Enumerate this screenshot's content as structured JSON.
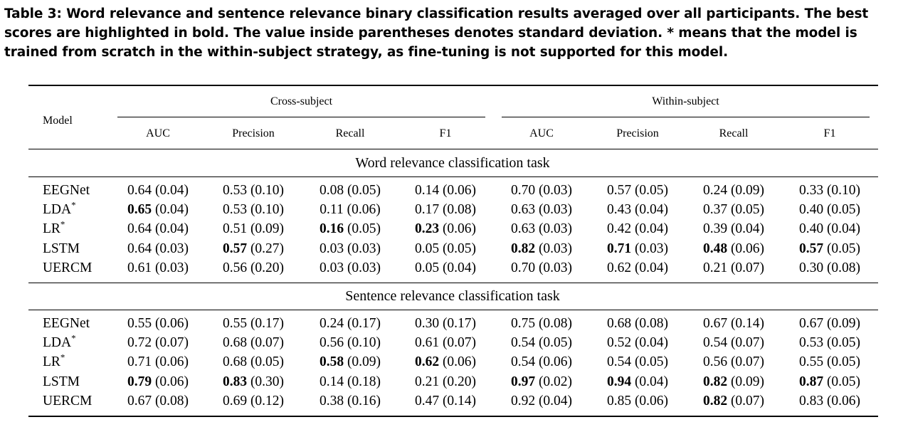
{
  "caption": "Table 3: Word relevance and sentence relevance binary classification results averaged over all participants. The best scores are highlighted in bold. The value inside parentheses denotes standard deviation. * means that the model is trained from scratch in the within-subject strategy, as fine-tuning is not supported for this model.",
  "header": {
    "model": "Model",
    "groups": [
      "Cross-subject",
      "Within-subject"
    ],
    "metrics": [
      "AUC",
      "Precision",
      "Recall",
      "F1",
      "AUC",
      "Precision",
      "Recall",
      "F1"
    ]
  },
  "sections": [
    {
      "title": "Word relevance classification task",
      "rows": [
        {
          "model": "EEGNet",
          "star": false,
          "cells": [
            {
              "v": "0.64",
              "sd": "(0.04)",
              "bold": false
            },
            {
              "v": "0.53",
              "sd": "(0.10)",
              "bold": false
            },
            {
              "v": "0.08",
              "sd": "(0.05)",
              "bold": false
            },
            {
              "v": "0.14",
              "sd": "(0.06)",
              "bold": false
            },
            {
              "v": "0.70",
              "sd": "(0.03)",
              "bold": false
            },
            {
              "v": "0.57",
              "sd": "(0.05)",
              "bold": false
            },
            {
              "v": "0.24",
              "sd": "(0.09)",
              "bold": false
            },
            {
              "v": "0.33",
              "sd": "(0.10)",
              "bold": false
            }
          ]
        },
        {
          "model": "LDA",
          "star": true,
          "cells": [
            {
              "v": "0.65",
              "sd": "(0.04)",
              "bold": true
            },
            {
              "v": "0.53",
              "sd": "(0.10)",
              "bold": false
            },
            {
              "v": "0.11",
              "sd": "(0.06)",
              "bold": false
            },
            {
              "v": "0.17",
              "sd": "(0.08)",
              "bold": false
            },
            {
              "v": "0.63",
              "sd": "(0.03)",
              "bold": false
            },
            {
              "v": "0.43",
              "sd": "(0.04)",
              "bold": false
            },
            {
              "v": "0.37",
              "sd": "(0.05)",
              "bold": false
            },
            {
              "v": "0.40",
              "sd": "(0.05)",
              "bold": false
            }
          ]
        },
        {
          "model": "LR",
          "star": true,
          "cells": [
            {
              "v": "0.64",
              "sd": "(0.04)",
              "bold": false
            },
            {
              "v": "0.51",
              "sd": "(0.09)",
              "bold": false
            },
            {
              "v": "0.16",
              "sd": "(0.05)",
              "bold": true
            },
            {
              "v": "0.23",
              "sd": "(0.06)",
              "bold": true
            },
            {
              "v": "0.63",
              "sd": "(0.03)",
              "bold": false
            },
            {
              "v": "0.42",
              "sd": "(0.04)",
              "bold": false
            },
            {
              "v": "0.39",
              "sd": "(0.04)",
              "bold": false
            },
            {
              "v": "0.40",
              "sd": "(0.04)",
              "bold": false
            }
          ]
        },
        {
          "model": "LSTM",
          "star": false,
          "cells": [
            {
              "v": "0.64",
              "sd": "(0.03)",
              "bold": false
            },
            {
              "v": "0.57",
              "sd": "(0.27)",
              "bold": true
            },
            {
              "v": "0.03",
              "sd": "(0.03)",
              "bold": false
            },
            {
              "v": "0.05",
              "sd": "(0.05)",
              "bold": false
            },
            {
              "v": "0.82",
              "sd": "(0.03)",
              "bold": true
            },
            {
              "v": "0.71",
              "sd": "(0.03)",
              "bold": true
            },
            {
              "v": "0.48",
              "sd": "(0.06)",
              "bold": true
            },
            {
              "v": "0.57",
              "sd": "(0.05)",
              "bold": true
            }
          ]
        },
        {
          "model": "UERCM",
          "star": false,
          "cells": [
            {
              "v": "0.61",
              "sd": "(0.03)",
              "bold": false
            },
            {
              "v": "0.56",
              "sd": "(0.20)",
              "bold": false
            },
            {
              "v": "0.03",
              "sd": "(0.03)",
              "bold": false
            },
            {
              "v": "0.05",
              "sd": "(0.04)",
              "bold": false
            },
            {
              "v": "0.70",
              "sd": "(0.03)",
              "bold": false
            },
            {
              "v": "0.62",
              "sd": "(0.04)",
              "bold": false
            },
            {
              "v": "0.21",
              "sd": "(0.07)",
              "bold": false
            },
            {
              "v": "0.30",
              "sd": "(0.08)",
              "bold": false
            }
          ]
        }
      ]
    },
    {
      "title": "Sentence relevance classification task",
      "rows": [
        {
          "model": "EEGNet",
          "star": false,
          "cells": [
            {
              "v": "0.55",
              "sd": "(0.06)",
              "bold": false
            },
            {
              "v": "0.55",
              "sd": "(0.17)",
              "bold": false
            },
            {
              "v": "0.24",
              "sd": "(0.17)",
              "bold": false
            },
            {
              "v": "0.30",
              "sd": "(0.17)",
              "bold": false
            },
            {
              "v": "0.75",
              "sd": "(0.08)",
              "bold": false
            },
            {
              "v": "0.68",
              "sd": "(0.08)",
              "bold": false
            },
            {
              "v": "0.67",
              "sd": "(0.14)",
              "bold": false
            },
            {
              "v": "0.67",
              "sd": "(0.09)",
              "bold": false
            }
          ]
        },
        {
          "model": "LDA",
          "star": true,
          "cells": [
            {
              "v": "0.72",
              "sd": "(0.07)",
              "bold": false
            },
            {
              "v": "0.68",
              "sd": "(0.07)",
              "bold": false
            },
            {
              "v": "0.56",
              "sd": "(0.10)",
              "bold": false
            },
            {
              "v": "0.61",
              "sd": "(0.07)",
              "bold": false
            },
            {
              "v": "0.54",
              "sd": "(0.05)",
              "bold": false
            },
            {
              "v": "0.52",
              "sd": "(0.04)",
              "bold": false
            },
            {
              "v": "0.54",
              "sd": "(0.07)",
              "bold": false
            },
            {
              "v": "0.53",
              "sd": "(0.05)",
              "bold": false
            }
          ]
        },
        {
          "model": "LR",
          "star": true,
          "cells": [
            {
              "v": "0.71",
              "sd": "(0.06)",
              "bold": false
            },
            {
              "v": "0.68",
              "sd": "(0.05)",
              "bold": false
            },
            {
              "v": "0.58",
              "sd": "(0.09)",
              "bold": true
            },
            {
              "v": "0.62",
              "sd": "(0.06)",
              "bold": true
            },
            {
              "v": "0.54",
              "sd": "(0.06)",
              "bold": false
            },
            {
              "v": "0.54",
              "sd": "(0.05)",
              "bold": false
            },
            {
              "v": "0.56",
              "sd": "(0.07)",
              "bold": false
            },
            {
              "v": "0.55",
              "sd": "(0.05)",
              "bold": false
            }
          ]
        },
        {
          "model": "LSTM",
          "star": false,
          "cells": [
            {
              "v": "0.79",
              "sd": "(0.06)",
              "bold": true
            },
            {
              "v": "0.83",
              "sd": "(0.30)",
              "bold": true
            },
            {
              "v": "0.14",
              "sd": "(0.18)",
              "bold": false
            },
            {
              "v": "0.21",
              "sd": "(0.20)",
              "bold": false
            },
            {
              "v": "0.97",
              "sd": "(0.02)",
              "bold": true
            },
            {
              "v": "0.94",
              "sd": "(0.04)",
              "bold": true
            },
            {
              "v": "0.82",
              "sd": "(0.09)",
              "bold": true
            },
            {
              "v": "0.87",
              "sd": "(0.05)",
              "bold": true
            }
          ]
        },
        {
          "model": "UERCM",
          "star": false,
          "cells": [
            {
              "v": "0.67",
              "sd": "(0.08)",
              "bold": false
            },
            {
              "v": "0.69",
              "sd": "(0.12)",
              "bold": false
            },
            {
              "v": "0.38",
              "sd": "(0.16)",
              "bold": false
            },
            {
              "v": "0.47",
              "sd": "(0.14)",
              "bold": false
            },
            {
              "v": "0.92",
              "sd": "(0.04)",
              "bold": false
            },
            {
              "v": "0.85",
              "sd": "(0.06)",
              "bold": false
            },
            {
              "v": "0.82",
              "sd": "(0.07)",
              "bold": true
            },
            {
              "v": "0.83",
              "sd": "(0.06)",
              "bold": false
            }
          ]
        }
      ]
    }
  ]
}
